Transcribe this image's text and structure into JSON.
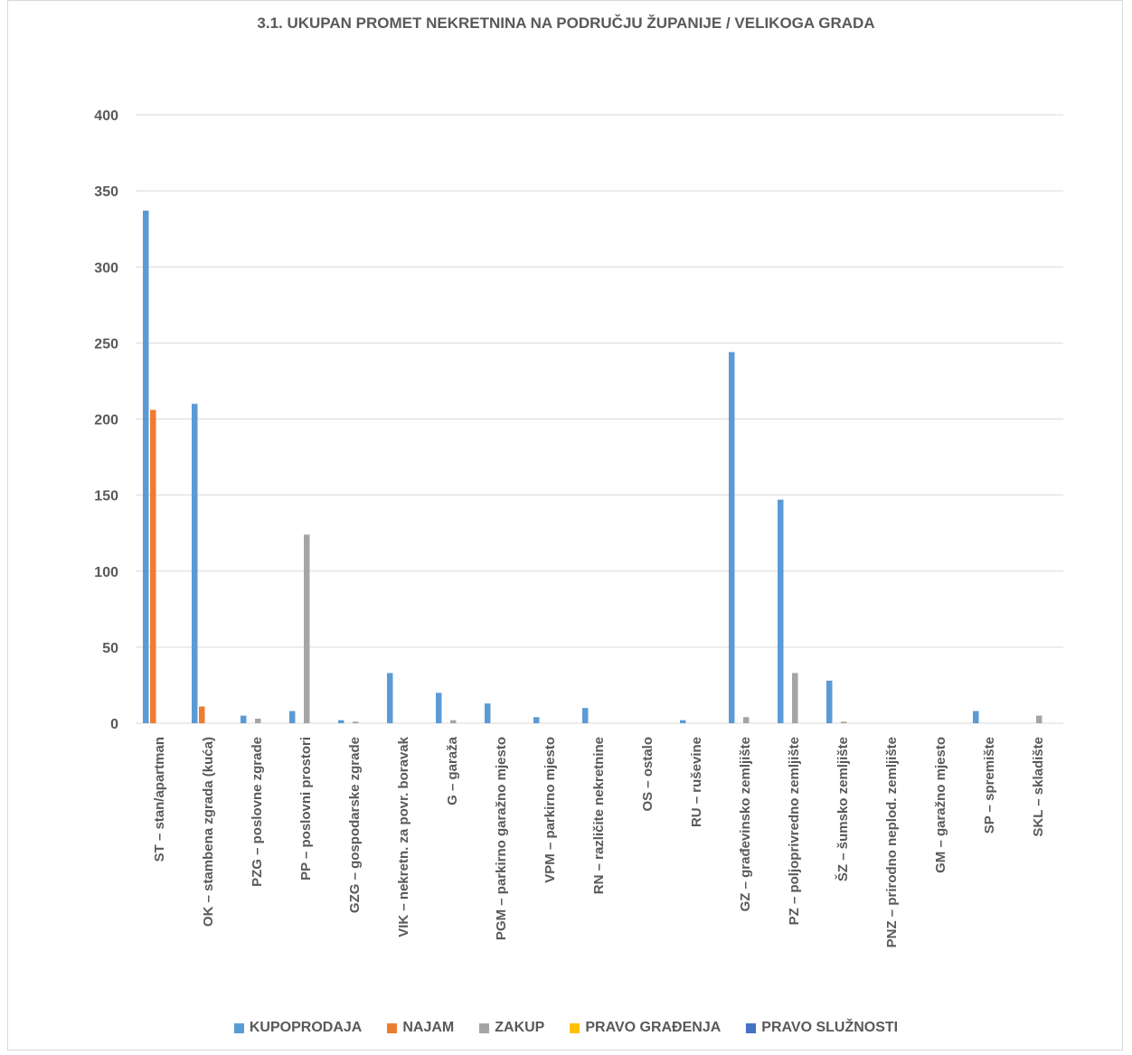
{
  "chart_data": {
    "type": "bar",
    "title": "3.1. UKUPAN PROMET NEKRETNINA NA PODRUČJU ŽUPANIJE /  VELIKOGA GRADA",
    "xlabel": "",
    "ylabel": "",
    "ylim": [
      0,
      400
    ],
    "yticks": [
      0,
      50,
      100,
      150,
      200,
      250,
      300,
      350,
      400
    ],
    "grid": true,
    "legend_position": "bottom",
    "categories": [
      "ST – stan/apartman",
      "OK – stambena zgrada (kuća)",
      "PZG – poslovne zgrade",
      "PP – poslovni prostori",
      "GZG – gospodarske zgrade",
      "VIK – nekretn. za povr. boravak",
      "G – garaža",
      "PGM – parkirno garažno mjesto",
      "VPM – parkirno mjesto",
      "RN – različite nekretnine",
      "OS – ostalo",
      "RU – ruševine",
      "GZ – građevinsko zemljište",
      "PZ – poljoprivredno zemljište",
      "ŠZ – šumsko zemljište",
      "PNZ – prirodno neplod. zemljište",
      "GM – garažno mjesto",
      "SP – spremište",
      "SKL – skladište"
    ],
    "series": [
      {
        "name": "KUPOPRODAJA",
        "color": "#5b9bd5",
        "values": [
          337,
          210,
          5,
          8,
          2,
          33,
          20,
          13,
          4,
          10,
          0,
          2,
          244,
          147,
          28,
          0,
          0,
          8,
          0
        ]
      },
      {
        "name": "NAJAM",
        "color": "#ed7d31",
        "values": [
          206,
          11,
          0,
          0,
          0,
          0,
          0,
          0,
          0,
          0,
          0,
          0,
          0,
          0,
          0,
          0,
          0,
          0,
          0
        ]
      },
      {
        "name": "ZAKUP",
        "color": "#a5a5a5",
        "values": [
          0,
          0,
          3,
          124,
          1,
          0,
          2,
          0,
          0,
          0,
          0,
          0,
          4,
          33,
          1,
          0,
          0,
          0,
          5
        ]
      },
      {
        "name": "PRAVO GRAĐENJA",
        "color": "#ffc000",
        "values": [
          0,
          0,
          0,
          0,
          0,
          0,
          0,
          0,
          0,
          0,
          0,
          0,
          0,
          0,
          0,
          0,
          0,
          0,
          0
        ]
      },
      {
        "name": "PRAVO SLUŽNOSTI",
        "color": "#4472c4",
        "values": [
          0,
          0,
          0,
          0,
          0,
          0,
          0,
          0,
          0,
          0,
          0,
          0,
          0,
          0,
          0,
          0,
          0,
          0,
          0
        ]
      }
    ]
  }
}
